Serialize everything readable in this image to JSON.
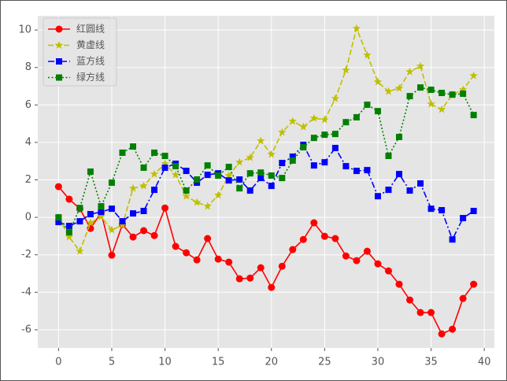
{
  "chart_data": {
    "type": "line",
    "x": [
      0,
      1,
      2,
      3,
      4,
      5,
      6,
      7,
      8,
      9,
      10,
      11,
      12,
      13,
      14,
      15,
      16,
      17,
      18,
      19,
      20,
      21,
      22,
      23,
      24,
      25,
      26,
      27,
      28,
      29,
      30,
      31,
      32,
      33,
      34,
      35,
      36,
      37,
      38,
      39
    ],
    "series": [
      {
        "name": "红圆线",
        "color": "#ff0000",
        "linestyle": "-",
        "marker": "o",
        "values": [
          1.64,
          0.97,
          0.46,
          -0.59,
          0.25,
          -2.02,
          -0.38,
          -1.05,
          -0.71,
          -0.97,
          0.5,
          -1.55,
          -1.89,
          -2.27,
          -1.13,
          -2.23,
          -2.39,
          -3.28,
          -3.24,
          -2.69,
          -3.74,
          -2.61,
          -1.72,
          -1.18,
          -0.29,
          -1.01,
          -1.13,
          -2.06,
          -2.31,
          -1.81,
          -2.48,
          -2.86,
          -3.57,
          -4.41,
          -5.08,
          -5.08,
          -6.22,
          -5.97,
          -4.33,
          -3.57
        ]
      },
      {
        "name": "黄虚线",
        "color": "#bfbf00",
        "linestyle": "--",
        "marker": "*",
        "values": [
          0.0,
          -1.05,
          -1.81,
          -0.29,
          0.04,
          -0.67,
          -0.42,
          1.55,
          1.68,
          2.31,
          2.86,
          2.27,
          1.13,
          0.8,
          0.59,
          1.18,
          2.23,
          2.94,
          3.19,
          4.08,
          3.36,
          4.54,
          5.13,
          4.83,
          5.29,
          5.21,
          6.34,
          7.86,
          10.08,
          8.66,
          7.23,
          6.72,
          6.89,
          7.77,
          8.07,
          6.05,
          5.76,
          6.55,
          6.81,
          7.56
        ]
      },
      {
        "name": "蓝方线",
        "color": "#0000ff",
        "linestyle": "-.",
        "marker": "s",
        "values": [
          -0.25,
          -0.46,
          -0.21,
          0.17,
          0.29,
          0.46,
          -0.21,
          0.21,
          0.34,
          1.47,
          2.65,
          2.86,
          2.48,
          1.85,
          2.27,
          2.35,
          1.97,
          2.02,
          1.43,
          2.1,
          1.68,
          2.9,
          3.24,
          3.87,
          2.77,
          2.94,
          3.7,
          2.73,
          2.48,
          2.52,
          1.13,
          1.47,
          2.31,
          1.43,
          1.81,
          0.46,
          0.38,
          -1.18,
          -0.04,
          0.34
        ]
      },
      {
        "name": "绿方线",
        "color": "#008000",
        "linestyle": ":",
        "marker": "s",
        "values": [
          0.0,
          -0.8,
          0.5,
          2.44,
          0.59,
          1.85,
          3.45,
          3.78,
          2.65,
          3.45,
          3.28,
          2.73,
          1.43,
          2.02,
          2.77,
          2.23,
          2.69,
          1.55,
          2.35,
          2.39,
          2.23,
          2.1,
          3.03,
          3.74,
          4.24,
          4.41,
          4.45,
          5.08,
          5.34,
          6.01,
          5.67,
          3.28,
          4.29,
          6.47,
          6.93,
          6.81,
          6.64,
          6.55,
          6.6,
          5.46
        ]
      }
    ],
    "xlim": [
      -1.95,
      40.95
    ],
    "xticks": [
      0,
      5,
      10,
      15,
      20,
      25,
      30,
      35,
      40
    ],
    "ylim": [
      -6.97,
      10.76
    ],
    "yticks": [
      -6,
      -4,
      -2,
      0,
      2,
      4,
      6,
      8,
      10
    ],
    "grid": true,
    "legend": "upper left"
  }
}
